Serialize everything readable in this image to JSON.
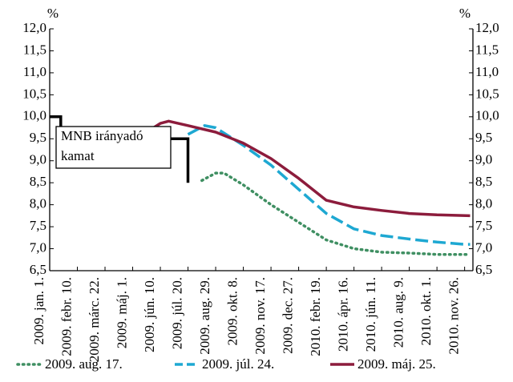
{
  "chart_data": {
    "type": "line",
    "y_unit": "%",
    "y2_unit": "%",
    "categories": [
      "2009. jan. 1.",
      "2009. febr. 10.",
      "2009. márc. 22.",
      "2009. máj. 1.",
      "2009. jún. 10.",
      "2009. júl. 20.",
      "2009. aug. 29.",
      "2009. okt. 8.",
      "2009. nov. 17.",
      "2009. dec. 27.",
      "2010. febr. 19.",
      "2010. ápr. 16.",
      "2010. jún. 11.",
      "2010. aug. 9.",
      "2010. okt. 1.",
      "2010. nov. 26."
    ],
    "xlim": [
      0,
      15.3
    ],
    "ylim": [
      6.5,
      12.0
    ],
    "yticks": [
      {
        "value": 6.5,
        "label": "6,5"
      },
      {
        "value": 7.0,
        "label": "7,0"
      },
      {
        "value": 7.5,
        "label": "7,5"
      },
      {
        "value": 8.0,
        "label": "8,0"
      },
      {
        "value": 8.5,
        "label": "8,5"
      },
      {
        "value": 9.0,
        "label": "9,0"
      },
      {
        "value": 9.5,
        "label": "9,5"
      },
      {
        "value": 10.0,
        "label": "10,0"
      },
      {
        "value": 10.5,
        "label": "10,5"
      },
      {
        "value": 11.0,
        "label": "11,0"
      },
      {
        "value": 11.5,
        "label": "11,5"
      },
      {
        "value": 12.0,
        "label": "12,0"
      }
    ],
    "y2lim": [
      6.5,
      12.0
    ],
    "y2ticks": [
      {
        "value": 6.5,
        "label": "6,5"
      },
      {
        "value": 7.0,
        "label": "7,0"
      },
      {
        "value": 7.5,
        "label": "7,5"
      },
      {
        "value": 8.0,
        "label": "8,0"
      },
      {
        "value": 8.5,
        "label": "8,5"
      },
      {
        "value": 9.0,
        "label": "9,0"
      },
      {
        "value": 9.5,
        "label": "9,5"
      },
      {
        "value": 10.0,
        "label": "10,0"
      },
      {
        "value": 10.5,
        "label": "10,5"
      },
      {
        "value": 11.0,
        "label": "11,0"
      },
      {
        "value": 11.5,
        "label": "11,5"
      },
      {
        "value": 12.0,
        "label": "12,0"
      }
    ],
    "series": [
      {
        "name": "2009. aug. 17.",
        "color": "#3f8f62",
        "dash": "dotted",
        "x": [
          5.5,
          6,
          6.3,
          7,
          8,
          9,
          10,
          11,
          12,
          13,
          14,
          15,
          15.2
        ],
        "values": [
          8.55,
          8.72,
          8.72,
          8.45,
          8.0,
          7.6,
          7.2,
          7.0,
          6.92,
          6.9,
          6.87,
          6.87,
          6.87
        ]
      },
      {
        "name": "2009. júl. 24.",
        "color": "#1ea8d2",
        "dash": "dashed",
        "x": [
          5,
          5.6,
          6,
          7,
          8,
          9,
          10,
          11,
          12,
          13,
          14,
          15,
          15.2
        ],
        "values": [
          9.6,
          9.8,
          9.75,
          9.35,
          8.9,
          8.35,
          7.8,
          7.45,
          7.3,
          7.22,
          7.15,
          7.1,
          7.1
        ]
      },
      {
        "name": "2009. máj. 25.",
        "color": "#8c1c3c",
        "dash": "solid",
        "x": [
          3.5,
          4,
          4.3,
          5,
          6,
          7,
          8,
          9,
          10,
          11,
          12,
          13,
          14,
          15.2
        ],
        "values": [
          9.65,
          9.85,
          9.9,
          9.8,
          9.65,
          9.4,
          9.05,
          8.6,
          8.1,
          7.95,
          7.87,
          7.8,
          7.77,
          7.75
        ]
      }
    ],
    "policy_rate": {
      "label": [
        "MNB irányadó",
        "kamat"
      ],
      "color": "#000000",
      "x": [
        0,
        0.4,
        0.4,
        5,
        5
      ],
      "values": [
        10.0,
        10.0,
        9.5,
        9.5,
        8.5
      ]
    }
  }
}
